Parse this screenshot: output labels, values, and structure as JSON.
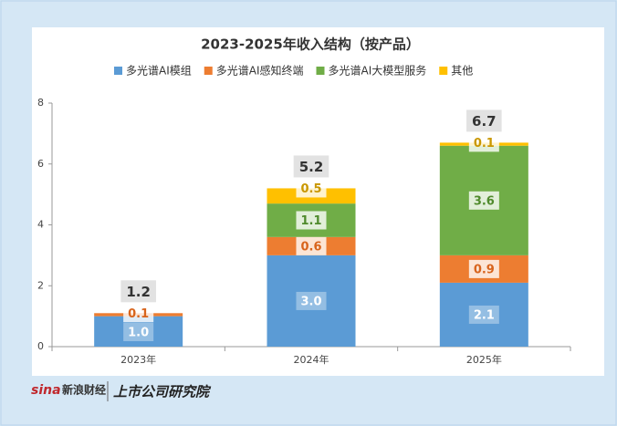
{
  "chart_data": {
    "type": "stacked_bar",
    "title": "2023-2025年收入结构（按产品）",
    "categories": [
      "2023年",
      "2024年",
      "2025年"
    ],
    "series": [
      {
        "name": "多光谱AI模组",
        "color": "#5b9bd5",
        "values": [
          1.0,
          3.0,
          2.1
        ],
        "value_labels": [
          "1.0",
          "3.0",
          "2.1"
        ]
      },
      {
        "name": "多光谱AI感知终端",
        "color": "#ed7d31",
        "values": [
          0.1,
          0.6,
          0.9
        ]
      },
      {
        "name": "多光谱AI大模型服务",
        "color": "#70ad47",
        "values": [
          null,
          1.1,
          3.6
        ]
      },
      {
        "name": "其他",
        "color": "#ffc000",
        "values": [
          null,
          0.5,
          0.1
        ]
      }
    ],
    "totals": [
      1.2,
      5.2,
      6.7
    ],
    "ylim": [
      0,
      8
    ],
    "yticks": [
      0,
      2,
      4,
      6,
      8
    ],
    "grid": false,
    "legend": "top"
  },
  "footer": {
    "logo_prefix": "sina",
    "logo1": "新浪财经",
    "logo2": "上市公司研究院"
  }
}
